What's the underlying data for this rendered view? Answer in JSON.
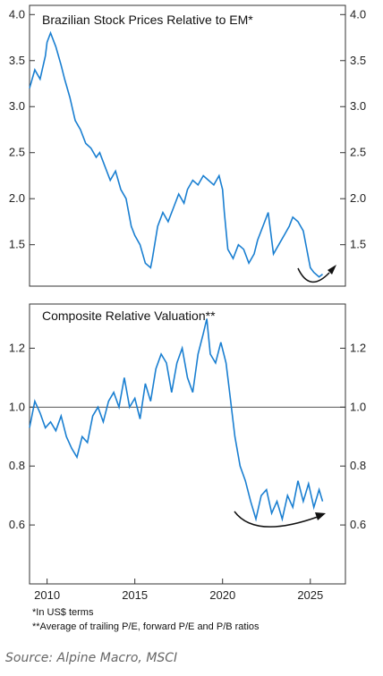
{
  "chart_data": [
    {
      "type": "line",
      "title": "Brazilian Stock Prices Relative to EM*",
      "xlabel": "",
      "ylabel": "",
      "xlim": [
        2009.0,
        2027.0
      ],
      "ylim": [
        1.05,
        4.1
      ],
      "yticks": [
        1.5,
        2.0,
        2.5,
        3.0,
        3.5,
        4.0
      ],
      "y_axis": "both-sides",
      "grid": false,
      "line_color": "#1a7fd1",
      "annotation": "curved-arrow-up-right",
      "series": [
        {
          "name": "",
          "x": [
            2009.0,
            2009.3,
            2009.6,
            2009.9,
            2010.0,
            2010.2,
            2010.5,
            2010.8,
            2011.0,
            2011.3,
            2011.6,
            2011.9,
            2012.2,
            2012.5,
            2012.8,
            2013.0,
            2013.3,
            2013.6,
            2013.9,
            2014.2,
            2014.5,
            2014.8,
            2015.0,
            2015.3,
            2015.6,
            2015.9,
            2016.0,
            2016.3,
            2016.6,
            2016.9,
            2017.2,
            2017.5,
            2017.8,
            2018.0,
            2018.3,
            2018.6,
            2018.9,
            2019.2,
            2019.5,
            2019.8,
            2020.0,
            2020.1,
            2020.3,
            2020.6,
            2020.9,
            2021.2,
            2021.5,
            2021.8,
            2022.0,
            2022.3,
            2022.6,
            2022.9,
            2023.2,
            2023.5,
            2023.8,
            2024.0,
            2024.3,
            2024.6,
            2024.9,
            2025.0,
            2025.2,
            2025.5,
            2025.7
          ],
          "values": [
            3.2,
            3.4,
            3.3,
            3.55,
            3.7,
            3.8,
            3.65,
            3.45,
            3.3,
            3.1,
            2.85,
            2.75,
            2.6,
            2.55,
            2.45,
            2.5,
            2.35,
            2.2,
            2.3,
            2.1,
            2.0,
            1.7,
            1.6,
            1.5,
            1.3,
            1.25,
            1.35,
            1.7,
            1.85,
            1.75,
            1.9,
            2.05,
            1.95,
            2.1,
            2.2,
            2.15,
            2.25,
            2.2,
            2.15,
            2.25,
            2.1,
            1.85,
            1.45,
            1.35,
            1.5,
            1.45,
            1.3,
            1.4,
            1.55,
            1.7,
            1.85,
            1.4,
            1.5,
            1.6,
            1.7,
            1.8,
            1.75,
            1.65,
            1.35,
            1.25,
            1.2,
            1.15,
            1.18
          ]
        }
      ]
    },
    {
      "type": "line",
      "title": "Composite Relative Valuation**",
      "xlabel": "",
      "ylabel": "",
      "xlim": [
        2009.0,
        2027.0
      ],
      "ylim": [
        0.4,
        1.35
      ],
      "yticks": [
        0.6,
        0.8,
        1.0,
        1.2
      ],
      "y_axis": "both-sides",
      "grid": false,
      "reference_line": 1.0,
      "line_color": "#1a7fd1",
      "annotation": "curved-arrow-up-right",
      "xticks": [
        2010,
        2015,
        2020,
        2025
      ],
      "series": [
        {
          "name": "",
          "x": [
            2009.0,
            2009.3,
            2009.6,
            2009.9,
            2010.2,
            2010.5,
            2010.8,
            2011.1,
            2011.4,
            2011.7,
            2012.0,
            2012.3,
            2012.6,
            2012.9,
            2013.2,
            2013.5,
            2013.8,
            2014.1,
            2014.4,
            2014.7,
            2015.0,
            2015.3,
            2015.6,
            2015.9,
            2016.2,
            2016.5,
            2016.8,
            2017.1,
            2017.4,
            2017.7,
            2018.0,
            2018.3,
            2018.6,
            2018.9,
            2019.1,
            2019.3,
            2019.6,
            2019.9,
            2020.2,
            2020.4,
            2020.7,
            2021.0,
            2021.3,
            2021.6,
            2021.9,
            2022.2,
            2022.5,
            2022.8,
            2023.1,
            2023.4,
            2023.7,
            2024.0,
            2024.3,
            2024.6,
            2024.9,
            2025.2,
            2025.5,
            2025.7
          ],
          "values": [
            0.93,
            1.02,
            0.98,
            0.93,
            0.95,
            0.92,
            0.97,
            0.9,
            0.86,
            0.83,
            0.9,
            0.88,
            0.97,
            1.0,
            0.95,
            1.02,
            1.05,
            1.0,
            1.1,
            1.0,
            1.03,
            0.96,
            1.08,
            1.02,
            1.13,
            1.18,
            1.15,
            1.05,
            1.15,
            1.2,
            1.1,
            1.05,
            1.18,
            1.25,
            1.3,
            1.18,
            1.15,
            1.22,
            1.15,
            1.05,
            0.9,
            0.8,
            0.75,
            0.68,
            0.62,
            0.7,
            0.72,
            0.64,
            0.68,
            0.62,
            0.7,
            0.66,
            0.75,
            0.68,
            0.74,
            0.66,
            0.72,
            0.68
          ]
        }
      ]
    }
  ],
  "footnotes": {
    "line1": "*In US$ terms",
    "line2": "**Average of trailing P/E, forward P/E and P/B ratios"
  },
  "source": "Source: Alpine Macro, MSCI"
}
